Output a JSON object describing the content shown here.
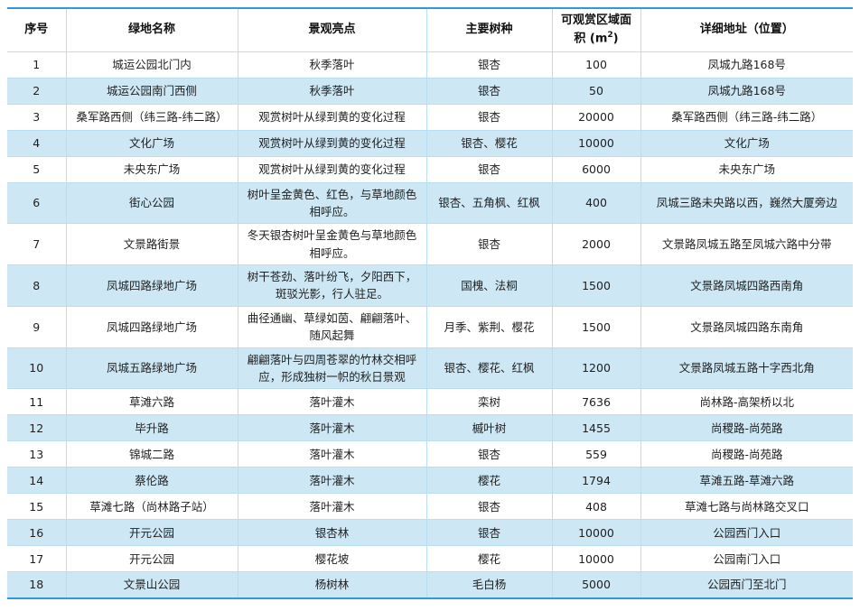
{
  "table": {
    "headers": {
      "no": "序号",
      "name": "绿地名称",
      "highlight": "景观亮点",
      "species": "主要树种",
      "area_prefix": "可观赏区域面积 (m",
      "area_sup": "2",
      "area_suffix": ")",
      "address": "详细地址（位置）"
    },
    "rows": [
      {
        "no": "1",
        "name": "城运公园北门内",
        "highlight": "秋季落叶",
        "species": "银杏",
        "area": "100",
        "address": "凤城九路168号"
      },
      {
        "no": "2",
        "name": "城运公园南门西侧",
        "highlight": "秋季落叶",
        "species": "银杏",
        "area": "50",
        "address": "凤城九路168号"
      },
      {
        "no": "3",
        "name": "桑军路西侧（纬三路-纬二路）",
        "highlight": "观赏树叶从绿到黄的变化过程",
        "species": "银杏",
        "area": "20000",
        "address": "桑军路西侧（纬三路-纬二路）"
      },
      {
        "no": "4",
        "name": "文化广场",
        "highlight": "观赏树叶从绿到黄的变化过程",
        "species": "银杏、樱花",
        "area": "10000",
        "address": "文化广场"
      },
      {
        "no": "5",
        "name": "未央东广场",
        "highlight": "观赏树叶从绿到黄的变化过程",
        "species": "银杏",
        "area": "6000",
        "address": "未央东广场"
      },
      {
        "no": "6",
        "name": "街心公园",
        "highlight": "树叶呈金黄色、红色，与草地颜色相呼应。",
        "species": "银杏、五角枫、红枫",
        "area": "400",
        "address": "凤城三路未央路以西，巍然大厦旁边"
      },
      {
        "no": "7",
        "name": "文景路街景",
        "highlight": "冬天银杏树叶呈金黄色与草地颜色相呼应。",
        "species": "银杏",
        "area": "2000",
        "address": "文景路凤城五路至凤城六路中分带"
      },
      {
        "no": "8",
        "name": "凤城四路绿地广场",
        "highlight": "树干苍劲、落叶纷飞，夕阳西下，斑驳光影，行人驻足。",
        "species": "国槐、法桐",
        "area": "1500",
        "address": "文景路凤城四路西南角"
      },
      {
        "no": "9",
        "name": "凤城四路绿地广场",
        "highlight": "曲径通幽、草绿如茵、翩翩落叶、随风起舞",
        "species": "月季、紫荆、樱花",
        "area": "1500",
        "address": "文景路凤城四路东南角"
      },
      {
        "no": "10",
        "name": "凤城五路绿地广场",
        "highlight": "翩翩落叶与四周苍翠的竹林交相呼应，形成独树一帜的秋日景观",
        "species": "银杏、樱花、红枫",
        "area": "1200",
        "address": "文景路凤城五路十字西北角"
      },
      {
        "no": "11",
        "name": "草滩六路",
        "highlight": "落叶灌木",
        "species": "栾树",
        "area": "7636",
        "address": "尚林路-高架桥以北"
      },
      {
        "no": "12",
        "name": "毕升路",
        "highlight": "落叶灌木",
        "species": "槭叶树",
        "area": "1455",
        "address": "尚稷路-尚苑路"
      },
      {
        "no": "13",
        "name": "锦城二路",
        "highlight": "落叶灌木",
        "species": "银杏",
        "area": "559",
        "address": "尚稷路-尚苑路"
      },
      {
        "no": "14",
        "name": "蔡伦路",
        "highlight": "落叶灌木",
        "species": "樱花",
        "area": "1794",
        "address": "草滩五路-草滩六路"
      },
      {
        "no": "15",
        "name": "草滩七路（尚林路子站）",
        "highlight": "落叶灌木",
        "species": "银杏",
        "area": "408",
        "address": "草滩七路与尚林路交叉口"
      },
      {
        "no": "16",
        "name": "开元公园",
        "highlight": "银杏林",
        "species": "银杏",
        "area": "10000",
        "address": "公园西门入口"
      },
      {
        "no": "17",
        "name": "开元公园",
        "highlight": "樱花坡",
        "species": "樱花",
        "area": "10000",
        "address": "公园南门入口"
      },
      {
        "no": "18",
        "name": "文景山公园",
        "highlight": "杨树林",
        "species": "毛白杨",
        "area": "5000",
        "address": "公园西门至北门"
      }
    ],
    "colors": {
      "accent_border": "#2E9BD5",
      "grid_line": "#B9DDF1",
      "alt_row_bg": "#CDE7F5",
      "text": "#1F1F1F"
    }
  }
}
